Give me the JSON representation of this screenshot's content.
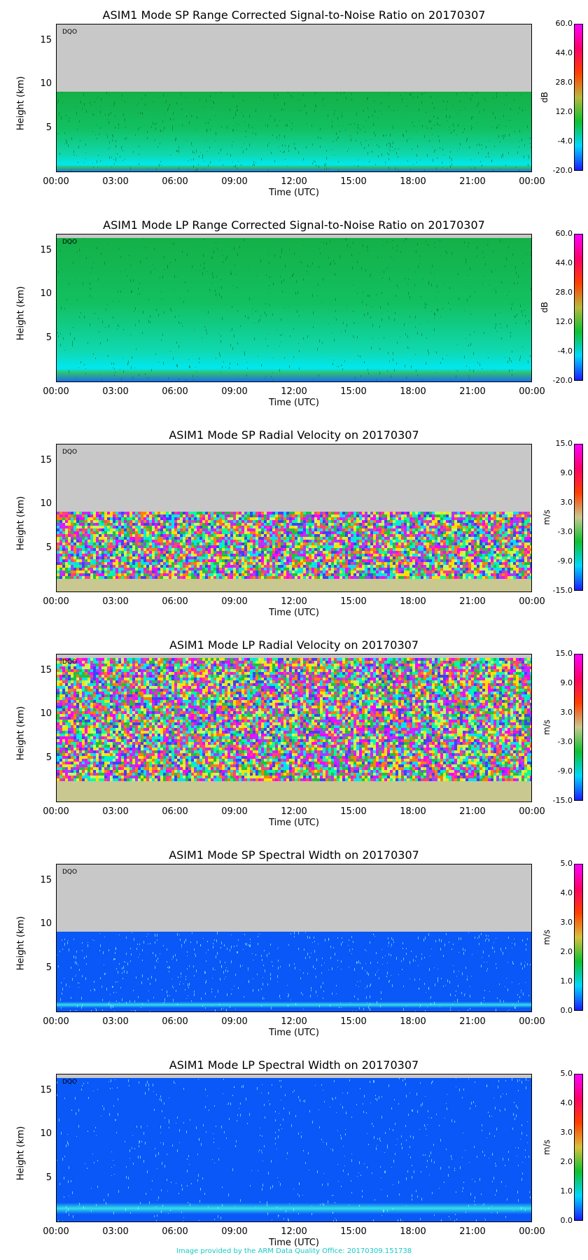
{
  "colors": {
    "missing": "#c8c8c8",
    "snr_scale": [
      "#1a1aff",
      "#00d8ff",
      "#10c030",
      "#b8b840",
      "#ff4000",
      "#ff0066",
      "#ff00ff"
    ],
    "vel_scale": [
      "#1a1aff",
      "#00d8ff",
      "#10c030",
      "#c8c890",
      "#ff4000",
      "#ff0066",
      "#ff00ff"
    ],
    "wid_scale": [
      "#1a1aff",
      "#00d8ff",
      "#10c030",
      "#d8c040",
      "#ff4000",
      "#ff0066",
      "#ff00ff"
    ],
    "footer": "#18c8c8"
  },
  "footer_text": "Image provided by the ARM Data Quality Office: 20170309.151738",
  "chart_data": [
    {
      "type": "heatmap",
      "title": "ASIM1 Mode SP Range Corrected Signal-to-Noise Ratio on 20170307",
      "xlabel": "Time (UTC)",
      "ylabel": "Height (km)",
      "x_ticks": [
        "00:00",
        "03:00",
        "06:00",
        "09:00",
        "12:00",
        "15:00",
        "18:00",
        "21:00",
        "00:00"
      ],
      "y_ticks": [
        "5",
        "10",
        "15"
      ],
      "y_tick_values": [
        5,
        10,
        15
      ],
      "ylim": [
        0,
        17
      ],
      "data_top_km": 9.3,
      "dominant_field": "snr_green",
      "colorbar": {
        "label": "dB",
        "ticks": [
          "60.0",
          "44.0",
          "28.0",
          "12.0",
          "-4.0",
          "-20.0"
        ],
        "range": [
          -20,
          60
        ],
        "scale": "snr_scale"
      },
      "tag": "DQO"
    },
    {
      "type": "heatmap",
      "title": "ASIM1 Mode LP Range Corrected Signal-to-Noise Ratio on 20170307",
      "xlabel": "Time (UTC)",
      "ylabel": "Height (km)",
      "x_ticks": [
        "00:00",
        "03:00",
        "06:00",
        "09:00",
        "12:00",
        "15:00",
        "18:00",
        "21:00",
        "00:00"
      ],
      "y_ticks": [
        "5",
        "10",
        "15"
      ],
      "y_tick_values": [
        5,
        10,
        15
      ],
      "ylim": [
        0,
        17
      ],
      "data_top_km": 16.6,
      "dominant_field": "snr_green",
      "colorbar": {
        "label": "dB",
        "ticks": [
          "60.0",
          "44.0",
          "28.0",
          "12.0",
          "-4.0",
          "-20.0"
        ],
        "range": [
          -20,
          60
        ],
        "scale": "snr_scale"
      },
      "tag": "DQO"
    },
    {
      "type": "heatmap",
      "title": "ASIM1 Mode SP Radial Velocity  on 20170307",
      "xlabel": "Time (UTC)",
      "ylabel": "Height (km)",
      "x_ticks": [
        "00:00",
        "03:00",
        "06:00",
        "09:00",
        "12:00",
        "15:00",
        "18:00",
        "21:00",
        "00:00"
      ],
      "y_ticks": [
        "5",
        "10",
        "15"
      ],
      "y_tick_values": [
        5,
        10,
        15
      ],
      "ylim": [
        0,
        17
      ],
      "data_top_km": 9.3,
      "dominant_field": "velocity_noise",
      "colorbar": {
        "label": "m/s",
        "ticks": [
          "15.0",
          "9.0",
          "3.0",
          "-3.0",
          "-9.0",
          "-15.0"
        ],
        "range": [
          -15,
          15
        ],
        "scale": "vel_scale"
      },
      "tag": "DQO"
    },
    {
      "type": "heatmap",
      "title": "ASIM1 Mode LP Radial Velocity  on 20170307",
      "xlabel": "Time (UTC)",
      "ylabel": "Height (km)",
      "x_ticks": [
        "00:00",
        "03:00",
        "06:00",
        "09:00",
        "12:00",
        "15:00",
        "18:00",
        "21:00",
        "00:00"
      ],
      "y_ticks": [
        "5",
        "10",
        "15"
      ],
      "y_tick_values": [
        5,
        10,
        15
      ],
      "ylim": [
        0,
        17
      ],
      "data_top_km": 16.6,
      "dominant_field": "velocity_noise",
      "colorbar": {
        "label": "m/s",
        "ticks": [
          "15.0",
          "9.0",
          "3.0",
          "-3.0",
          "-9.0",
          "-15.0"
        ],
        "range": [
          -15,
          15
        ],
        "scale": "vel_scale"
      },
      "tag": "DQO"
    },
    {
      "type": "heatmap",
      "title": "ASIM1 Mode SP Spectral Width  on 20170307",
      "xlabel": "Time (UTC)",
      "ylabel": "Height (km)",
      "x_ticks": [
        "00:00",
        "03:00",
        "06:00",
        "09:00",
        "12:00",
        "15:00",
        "18:00",
        "21:00",
        "00:00"
      ],
      "y_ticks": [
        "5",
        "10",
        "15"
      ],
      "y_tick_values": [
        5,
        10,
        15
      ],
      "ylim": [
        0,
        17
      ],
      "data_top_km": 9.3,
      "dominant_field": "width_blue",
      "colorbar": {
        "label": "m/s",
        "ticks": [
          "5.0",
          "4.0",
          "3.0",
          "2.0",
          "1.0",
          "0.0"
        ],
        "range": [
          0,
          5
        ],
        "scale": "wid_scale"
      },
      "tag": "DQO"
    },
    {
      "type": "heatmap",
      "title": "ASIM1 Mode LP Spectral Width  on 20170307",
      "xlabel": "Time (UTC)",
      "ylabel": "Height (km)",
      "x_ticks": [
        "00:00",
        "03:00",
        "06:00",
        "09:00",
        "12:00",
        "15:00",
        "18:00",
        "21:00",
        "00:00"
      ],
      "y_ticks": [
        "5",
        "10",
        "15"
      ],
      "y_tick_values": [
        5,
        10,
        15
      ],
      "ylim": [
        0,
        17
      ],
      "data_top_km": 16.6,
      "dominant_field": "width_blue",
      "colorbar": {
        "label": "m/s",
        "ticks": [
          "5.0",
          "4.0",
          "3.0",
          "2.0",
          "1.0",
          "0.0"
        ],
        "range": [
          0,
          5
        ],
        "scale": "wid_scale"
      },
      "tag": "DQO"
    }
  ]
}
